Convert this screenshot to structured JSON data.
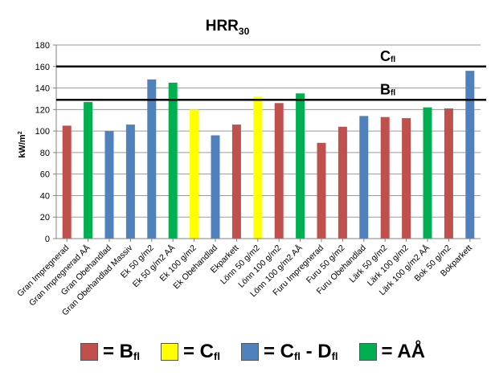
{
  "chart_data": {
    "type": "bar",
    "title_main": "HRR",
    "title_sub": "30",
    "ylabel_main": "kW/m",
    "ylabel_sup": "2",
    "ylim": [
      0,
      180
    ],
    "yticks": [
      0,
      20,
      40,
      60,
      80,
      100,
      120,
      140,
      160,
      180
    ],
    "grid": true,
    "colors": {
      "B": "#C0504D",
      "C": "#FFFF00",
      "CD": "#4F81BD",
      "AA": "#00B050"
    },
    "categories": [
      "Gran Impregnerad",
      "Gran Impregnerad AÅ",
      "Gran Obehandlad",
      "Gran Obehandlad Massiv",
      "Ek 50 g/m2",
      "Ek 50 g/m2 AÅ",
      "Ek 100 g/m2",
      "Ek Obehandlad",
      "Ekparkett",
      "Lönn 50 g/m2",
      "Lönn 100 g/m2",
      "Lönn 100 g/m2 AÅ",
      "Furu Impregnerad",
      "Furu 50 g/m2",
      "Furu Obehandlad",
      "Lärk 50 g/m2",
      "Lärk 100 g/m2",
      "Lärk 100 g/m2 AÅ",
      "Bok 50 g/m2",
      "Bokparkett"
    ],
    "values": [
      105,
      127,
      100,
      106,
      148,
      145,
      120,
      96,
      106,
      132,
      126,
      135,
      89,
      104,
      114,
      113,
      112,
      122,
      121,
      156
    ],
    "classes": [
      "B",
      "AA",
      "CD",
      "CD",
      "CD",
      "AA",
      "C",
      "CD",
      "B",
      "C",
      "B",
      "AA",
      "B",
      "B",
      "CD",
      "B",
      "B",
      "AA",
      "B",
      "CD"
    ],
    "reference_lines": [
      {
        "value": 160,
        "label_main": "C",
        "label_sub": "fl"
      },
      {
        "value": 129,
        "label_main": "B",
        "label_sub": "fl"
      }
    ],
    "legend": [
      {
        "key": "B",
        "text": "= B",
        "sub": "fl",
        "sub2": "",
        "tail": ""
      },
      {
        "key": "C",
        "text": "= C",
        "sub": "fl",
        "sub2": "",
        "tail": ""
      },
      {
        "key": "CD",
        "text": "= C",
        "sub": "fl",
        "mid": " - D",
        "sub2": "fl"
      },
      {
        "key": "AA",
        "text": "= AÅ",
        "sub": "",
        "sub2": "",
        "tail": ""
      }
    ]
  }
}
